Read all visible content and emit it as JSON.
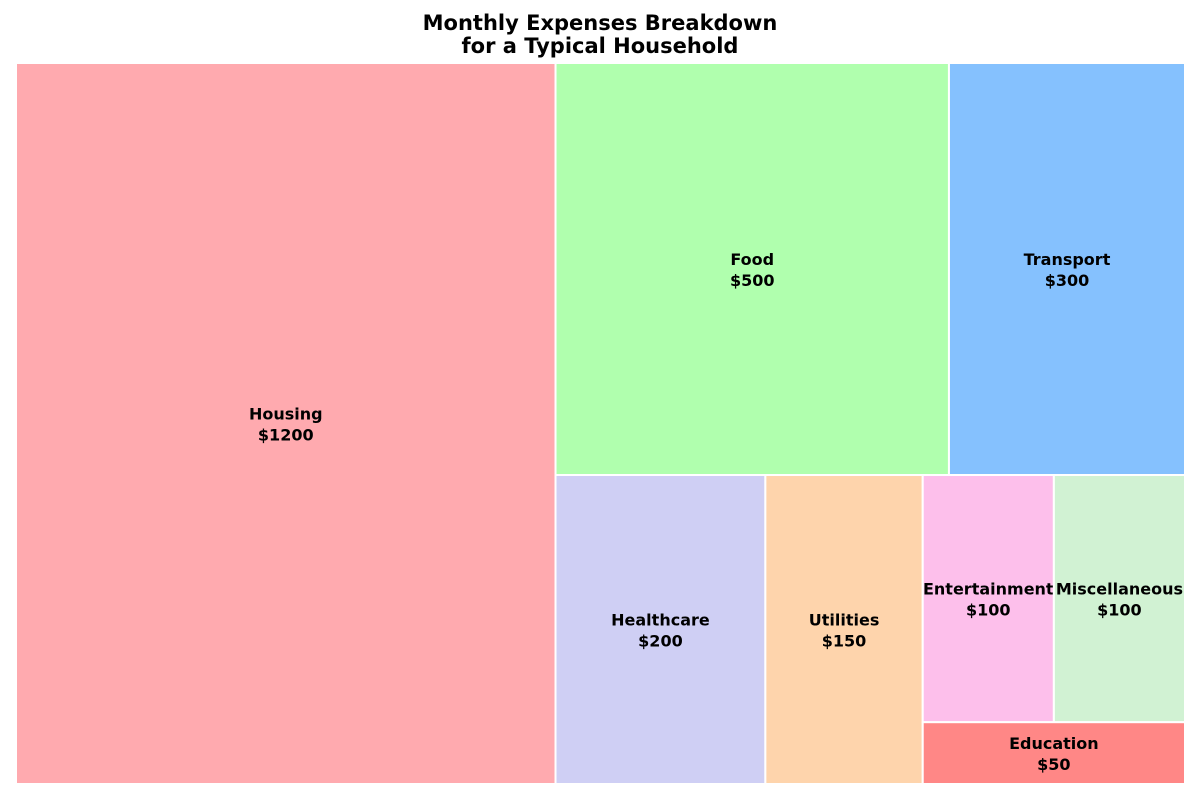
{
  "chart_data": {
    "type": "treemap",
    "title_lines": [
      "Monthly Expenses Breakdown",
      "for a Typical Household"
    ],
    "currency_prefix": "$",
    "items": [
      {
        "label": "Housing",
        "value": 1200,
        "color": "#ffaaaf"
      },
      {
        "label": "Food",
        "value": 500,
        "color": "#b0ffae"
      },
      {
        "label": "Transport",
        "value": 300,
        "color": "#85c1fe"
      },
      {
        "label": "Healthcare",
        "value": 200,
        "color": "#cfcff4"
      },
      {
        "label": "Utilities",
        "value": 150,
        "color": "#fed4ac"
      },
      {
        "label": "Entertainment",
        "value": 100,
        "color": "#fdbfeb"
      },
      {
        "label": "Miscellaneous",
        "value": 100,
        "color": "#d1f2d3"
      },
      {
        "label": "Education",
        "value": 50,
        "color": "#ff8786"
      }
    ]
  }
}
